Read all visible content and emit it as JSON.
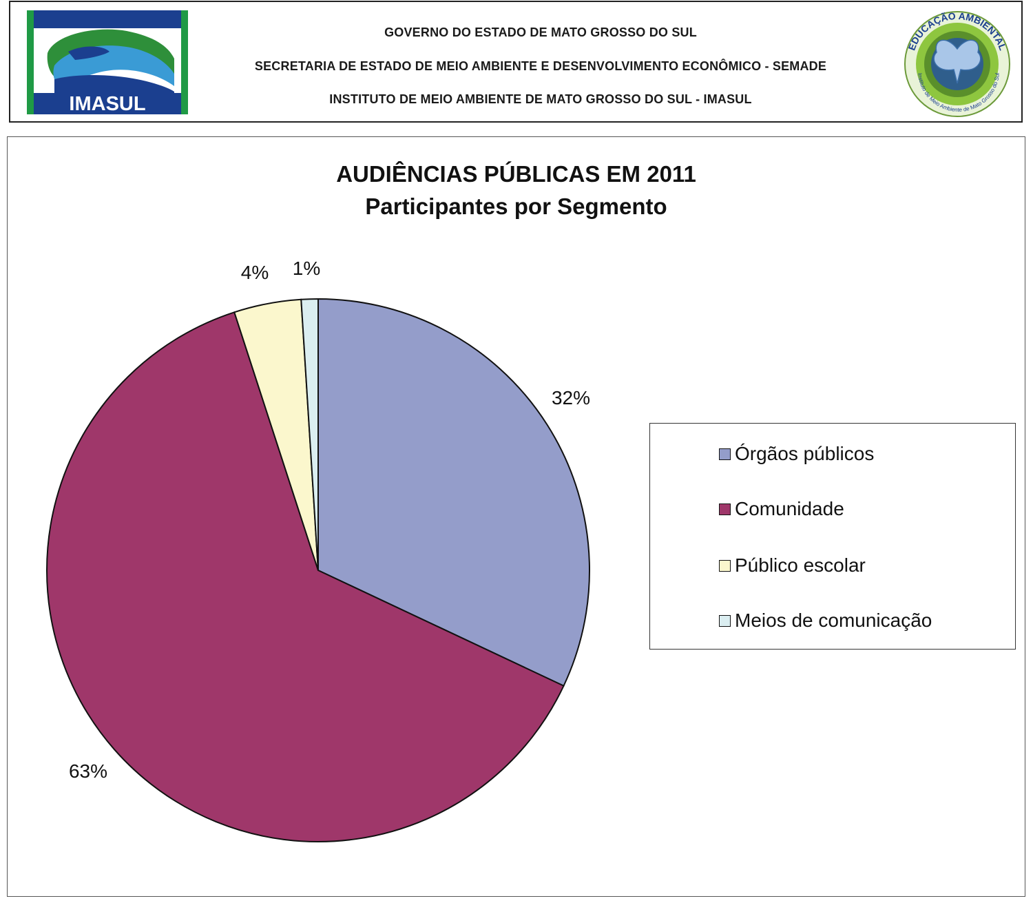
{
  "header": {
    "lines": [
      "GOVERNO DO ESTADO DE MATO GROSSO DO SUL",
      "SECRETARIA DE ESTADO DE MEIO AMBIENTE E DESENVOLVIMENTO ECONÔMICO - SEMADE",
      "INSTITUTO DE MEIO AMBIENTE DE MATO GROSSO DO SUL - IMASUL"
    ],
    "left_logo_text": "IMASUL",
    "right_logo_arc_text": "EDUCAÇÃO AMBIENTAL",
    "right_logo_lower_text": "Instituto de Meio Ambiente de Mato Grosso do Sul"
  },
  "chart_data": {
    "type": "pie",
    "title": "AUDIÊNCIAS PÚBLICAS EM 2011",
    "subtitle": "Participantes por Segmento",
    "legend_position": "right",
    "slices": [
      {
        "label": "Órgãos públicos",
        "value": 32,
        "display": "32%",
        "color": "#949dca"
      },
      {
        "label": "Comunidade",
        "value": 63,
        "display": "63%",
        "color": "#9f376a"
      },
      {
        "label": "Público escolar",
        "value": 4,
        "display": "4%",
        "color": "#fbf7cd"
      },
      {
        "label": "Meios de comunicação",
        "value": 1,
        "display": "1%",
        "color": "#dbeef1"
      }
    ]
  }
}
